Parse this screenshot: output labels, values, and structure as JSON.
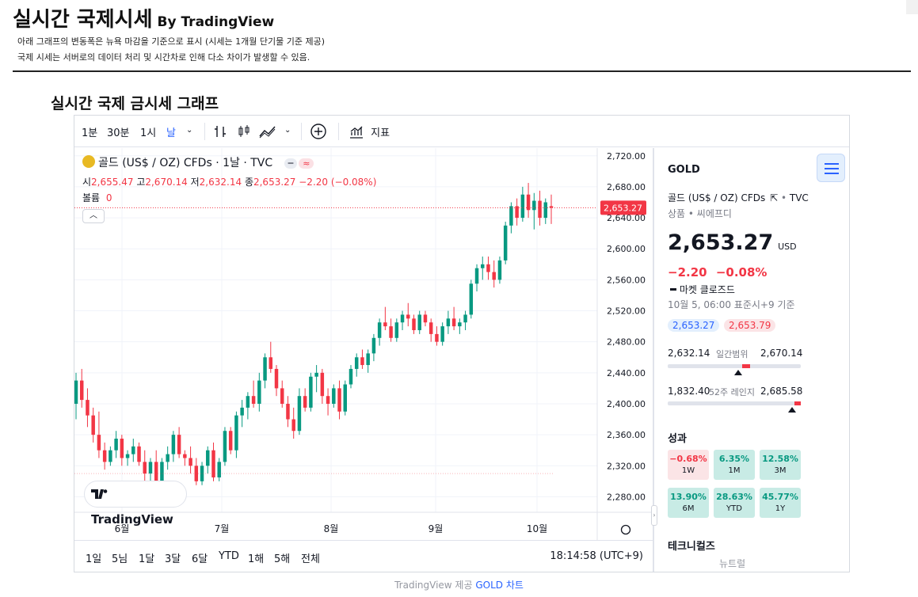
{
  "header": {
    "title": "실시간 국제시세",
    "by": "By TradingView",
    "note1": "아래 그래프의 변동폭은 뉴욕 마감을 기준으로 표시 (시세는 1개월 단기물 기준 제공)",
    "note2": "국제 시세는 서버로의 데이터 처리 및 시간차로 인해 다소 차이가 발생할 수 있음.",
    "section_title": "실시간 국제 금시세 그래프"
  },
  "toolbar": {
    "intervals": [
      "1분",
      "30분",
      "1시",
      "날"
    ],
    "indicators_label": "지표"
  },
  "legend": {
    "symbol": "골드 (US$ / OZ) CFDs · 1날 · TVC",
    "open_label": "시",
    "open": "2,655.47",
    "high_label": "고",
    "high": "2,670.14",
    "low_label": "저",
    "low": "2,632.14",
    "close_label": "종",
    "close": "2,653.27",
    "change": "−2.20 (−0.08%)",
    "volume_label": "볼륨",
    "volume": "0",
    "pill": "≈"
  },
  "logo_text": "TradingView",
  "bottombar": {
    "ranges": [
      "1일",
      "5님",
      "1달",
      "3달",
      "6달",
      "YTD",
      "1해",
      "5해",
      "전체"
    ],
    "clock": "18:14:58 (UTC+9)"
  },
  "colors": {
    "up": "#089981",
    "down": "#f23645",
    "accent": "#2962ff"
  },
  "chart_data": {
    "type": "candlestick",
    "title": "",
    "y_ticks": [
      2280,
      2320,
      2360,
      2400,
      2440,
      2480,
      2520,
      2560,
      2600,
      2640,
      2680,
      2720
    ],
    "ylim": [
      2260,
      2730
    ],
    "x_tick_labels": [
      "6월",
      "7월",
      "8월",
      "9월",
      "10월"
    ],
    "last_price_label": "2,653.27",
    "candles": [
      [
        2400,
        2440,
        2380,
        2430
      ],
      [
        2430,
        2445,
        2395,
        2405
      ],
      [
        2405,
        2420,
        2370,
        2385
      ],
      [
        2385,
        2395,
        2350,
        2360
      ],
      [
        2360,
        2390,
        2330,
        2340
      ],
      [
        2340,
        2350,
        2315,
        2325
      ],
      [
        2325,
        2345,
        2320,
        2340
      ],
      [
        2340,
        2365,
        2330,
        2355
      ],
      [
        2355,
        2360,
        2320,
        2330
      ],
      [
        2330,
        2340,
        2320,
        2335
      ],
      [
        2335,
        2355,
        2325,
        2345
      ],
      [
        2345,
        2350,
        2320,
        2325
      ],
      [
        2325,
        2340,
        2300,
        2310
      ],
      [
        2310,
        2330,
        2300,
        2325
      ],
      [
        2325,
        2340,
        2295,
        2300
      ],
      [
        2300,
        2330,
        2295,
        2325
      ],
      [
        2325,
        2345,
        2315,
        2335
      ],
      [
        2335,
        2365,
        2325,
        2360
      ],
      [
        2360,
        2370,
        2330,
        2335
      ],
      [
        2335,
        2340,
        2320,
        2330
      ],
      [
        2330,
        2345,
        2310,
        2320
      ],
      [
        2320,
        2330,
        2295,
        2300
      ],
      [
        2300,
        2325,
        2295,
        2320
      ],
      [
        2320,
        2345,
        2310,
        2340
      ],
      [
        2340,
        2350,
        2300,
        2305
      ],
      [
        2305,
        2330,
        2300,
        2325
      ],
      [
        2325,
        2370,
        2320,
        2365
      ],
      [
        2365,
        2370,
        2335,
        2340
      ],
      [
        2340,
        2390,
        2330,
        2385
      ],
      [
        2385,
        2405,
        2370,
        2395
      ],
      [
        2395,
        2415,
        2380,
        2410
      ],
      [
        2410,
        2430,
        2395,
        2400
      ],
      [
        2400,
        2440,
        2390,
        2430
      ],
      [
        2430,
        2465,
        2420,
        2460
      ],
      [
        2460,
        2480,
        2440,
        2445
      ],
      [
        2445,
        2450,
        2410,
        2420
      ],
      [
        2420,
        2430,
        2395,
        2400
      ],
      [
        2400,
        2410,
        2370,
        2380
      ],
      [
        2380,
        2395,
        2355,
        2365
      ],
      [
        2365,
        2420,
        2360,
        2410
      ],
      [
        2410,
        2420,
        2390,
        2395
      ],
      [
        2395,
        2440,
        2390,
        2435
      ],
      [
        2435,
        2450,
        2415,
        2440
      ],
      [
        2440,
        2445,
        2400,
        2410
      ],
      [
        2410,
        2420,
        2385,
        2400
      ],
      [
        2400,
        2425,
        2395,
        2420
      ],
      [
        2420,
        2430,
        2380,
        2390
      ],
      [
        2390,
        2430,
        2385,
        2425
      ],
      [
        2425,
        2450,
        2420,
        2445
      ],
      [
        2445,
        2465,
        2435,
        2460
      ],
      [
        2460,
        2470,
        2445,
        2450
      ],
      [
        2450,
        2470,
        2440,
        2465
      ],
      [
        2465,
        2490,
        2455,
        2485
      ],
      [
        2485,
        2510,
        2475,
        2505
      ],
      [
        2505,
        2525,
        2495,
        2500
      ],
      [
        2500,
        2510,
        2480,
        2485
      ],
      [
        2485,
        2510,
        2480,
        2505
      ],
      [
        2505,
        2520,
        2495,
        2515
      ],
      [
        2515,
        2530,
        2500,
        2510
      ],
      [
        2510,
        2515,
        2490,
        2495
      ],
      [
        2495,
        2520,
        2490,
        2515
      ],
      [
        2515,
        2520,
        2500,
        2505
      ],
      [
        2505,
        2510,
        2480,
        2490
      ],
      [
        2490,
        2500,
        2475,
        2480
      ],
      [
        2480,
        2505,
        2475,
        2500
      ],
      [
        2500,
        2520,
        2490,
        2510
      ],
      [
        2510,
        2525,
        2495,
        2500
      ],
      [
        2500,
        2510,
        2490,
        2505
      ],
      [
        2505,
        2520,
        2495,
        2515
      ],
      [
        2515,
        2560,
        2510,
        2555
      ],
      [
        2555,
        2580,
        2545,
        2575
      ],
      [
        2575,
        2590,
        2560,
        2580
      ],
      [
        2580,
        2590,
        2560,
        2570
      ],
      [
        2570,
        2585,
        2550,
        2560
      ],
      [
        2560,
        2590,
        2555,
        2585
      ],
      [
        2585,
        2635,
        2580,
        2630
      ],
      [
        2630,
        2660,
        2620,
        2655
      ],
      [
        2655,
        2665,
        2630,
        2640
      ],
      [
        2640,
        2680,
        2635,
        2670
      ],
      [
        2670,
        2685,
        2640,
        2650
      ],
      [
        2650,
        2672,
        2625,
        2662
      ],
      [
        2662,
        2675,
        2630,
        2640
      ],
      [
        2640,
        2665,
        2632,
        2660
      ],
      [
        2655,
        2670,
        2632,
        2653
      ]
    ]
  },
  "details": {
    "symbol": "GOLD",
    "full_name": "골드 (US$ / OZ) CFDs",
    "exchange": "TVC",
    "type": "상품 • 씨에프디",
    "price": "2,653.27",
    "currency": "USD",
    "change": "−2.20",
    "change_pct": "−0.08%",
    "market_status": "마켓 클로즈드",
    "timestamp": "10월 5, 06:00 표준시+9 기준",
    "bid": "2,653.27",
    "ask": "2,653.79",
    "day_low": "2,632.14",
    "day_label": "일간범위",
    "day_high": "2,670.14",
    "day_marker": 0.56,
    "wk_low": "1,832.40",
    "wk_label": "52주 레인지",
    "wk_high": "2,685.58",
    "wk_marker": 0.98,
    "perf_title": "성과",
    "perf": [
      {
        "value": "−0.68%",
        "label": "1W"
      },
      {
        "value": "6.35%",
        "label": "1M"
      },
      {
        "value": "12.58%",
        "label": "3M"
      },
      {
        "value": "13.90%",
        "label": "6M"
      },
      {
        "value": "28.63%",
        "label": "YTD"
      },
      {
        "value": "45.77%",
        "label": "1Y"
      }
    ],
    "technicals_title": "테크니컬즈",
    "technicals_value": "뉴트럴"
  },
  "footer": {
    "prefix": "TradingView 제공",
    "link": "GOLD 차트"
  }
}
